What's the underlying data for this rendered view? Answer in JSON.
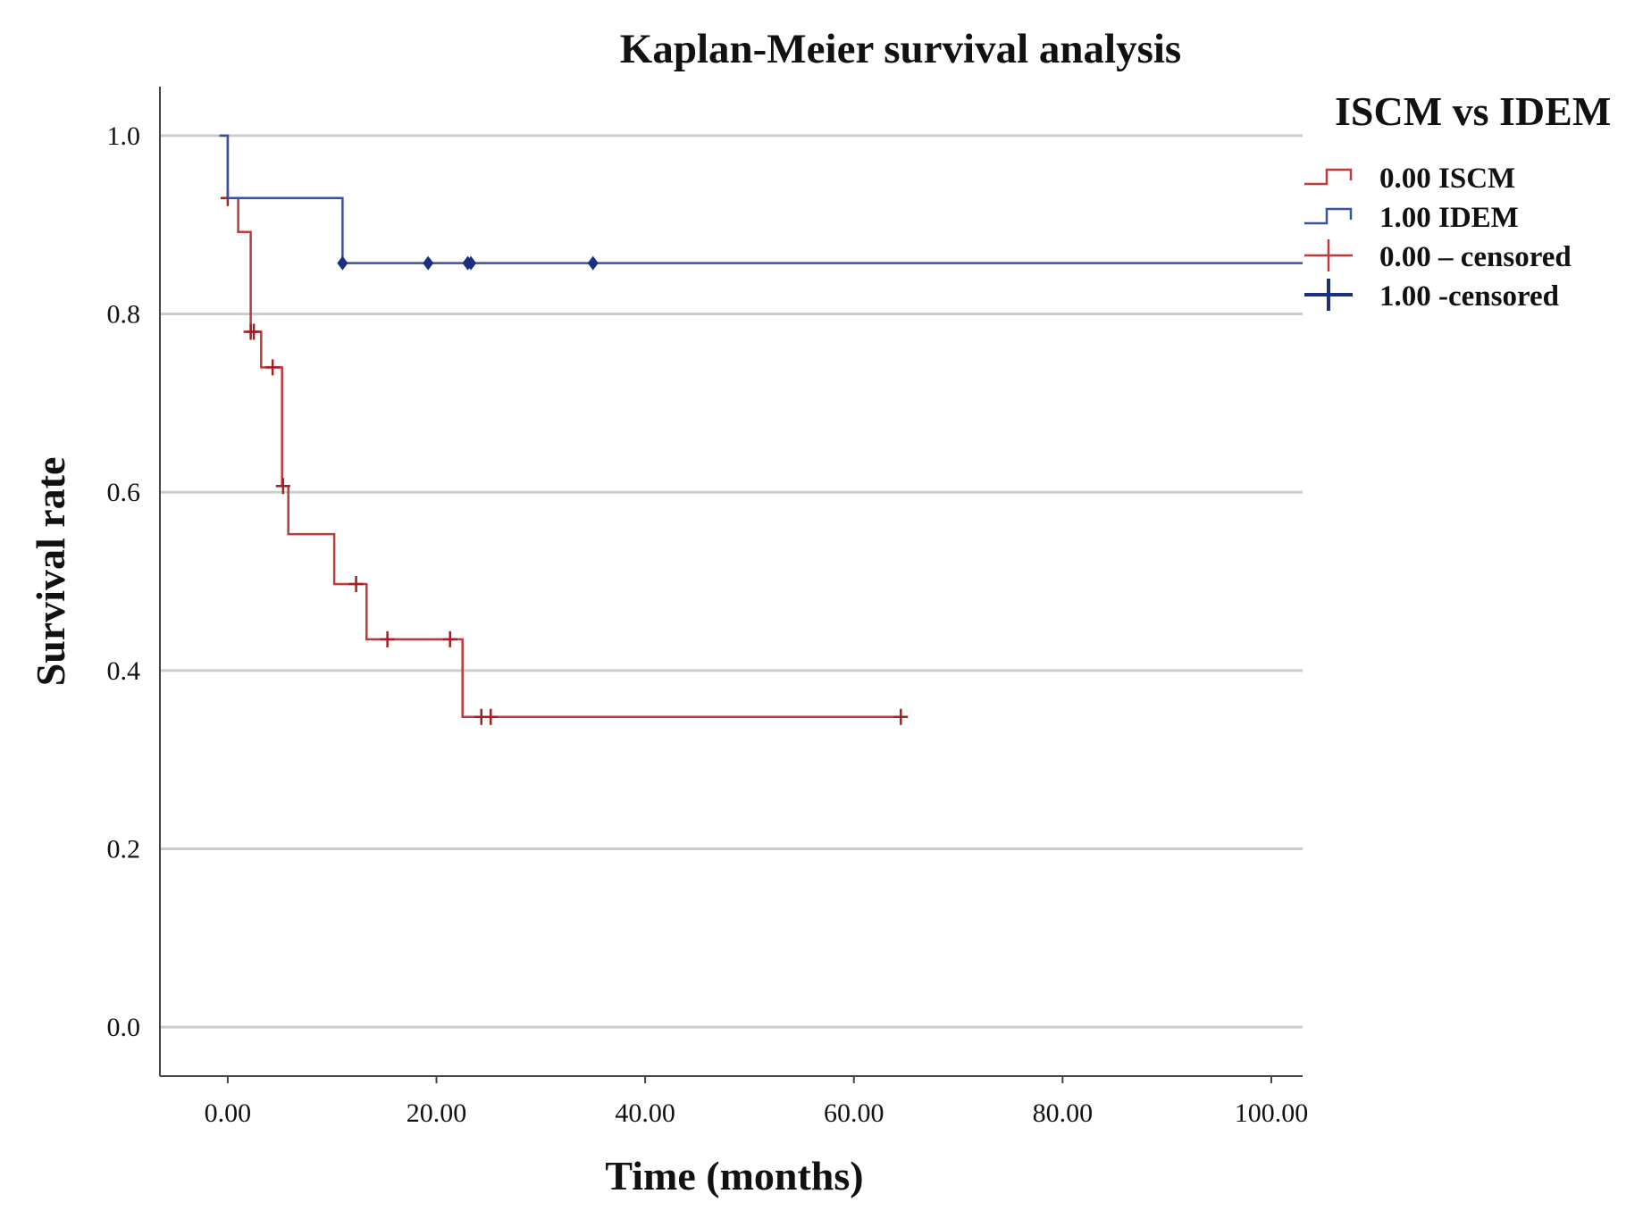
{
  "chart_data": {
    "type": "line",
    "subtype": "kaplan-meier-step",
    "title": "Kaplan-Meier survival analysis",
    "xlabel": "Time (months)",
    "ylabel": "Survival rate",
    "xlim": [
      -6.5,
      103
    ],
    "ylim": [
      -0.055,
      1.055
    ],
    "x_ticks": [
      0,
      20,
      40,
      60,
      80,
      100
    ],
    "x_tick_labels": [
      "0.00",
      "20.00",
      "40.00",
      "60.00",
      "80.00",
      "100.00"
    ],
    "y_ticks": [
      0,
      0.2,
      0.4,
      0.6,
      0.8,
      1.0
    ],
    "y_tick_labels": [
      "0.0",
      "0.2",
      "0.4",
      "0.6",
      "0.8",
      "1.0"
    ],
    "grid": true,
    "legend": {
      "title": "ISCM vs IDEM",
      "position": "top-right",
      "entries": [
        {
          "label": "0.00 ISCM",
          "kind": "step",
          "color": "#c0393b"
        },
        {
          "label": "1.00 IDEM",
          "kind": "step",
          "color": "#3a50a0"
        },
        {
          "label": "0.00 – censored",
          "kind": "censor",
          "color": "#c0393b"
        },
        {
          "label": "1.00 -censored",
          "kind": "censor",
          "color": "#1a2f7f"
        }
      ]
    },
    "series": [
      {
        "name": "0.00 ISCM",
        "color": "#c0393b",
        "censor_color": "#a31f24",
        "steps": [
          [
            -0.5,
            1.0
          ],
          [
            0.0,
            0.93
          ],
          [
            1.0,
            0.892
          ],
          [
            2.2,
            0.78
          ],
          [
            3.2,
            0.74
          ],
          [
            5.2,
            0.607
          ],
          [
            5.8,
            0.553
          ],
          [
            10.2,
            0.497
          ],
          [
            13.3,
            0.435
          ],
          [
            22.5,
            0.348
          ],
          [
            64.5,
            0.348
          ]
        ],
        "censored": [
          [
            0.0,
            0.93
          ],
          [
            2.2,
            0.78
          ],
          [
            2.5,
            0.78
          ],
          [
            4.3,
            0.74
          ],
          [
            5.3,
            0.607
          ],
          [
            12.3,
            0.497
          ],
          [
            15.3,
            0.435
          ],
          [
            21.3,
            0.435
          ],
          [
            24.3,
            0.348
          ],
          [
            25.2,
            0.348
          ],
          [
            64.5,
            0.348
          ]
        ]
      },
      {
        "name": "1.00 IDEM",
        "color": "#3a50a0",
        "censor_color": "#1a2f7f",
        "steps": [
          [
            -0.8,
            1.0
          ],
          [
            0.0,
            0.93
          ],
          [
            11.0,
            0.857
          ],
          [
            103,
            0.857
          ]
        ],
        "censored": [
          [
            11.0,
            0.857
          ],
          [
            19.2,
            0.857
          ],
          [
            23.0,
            0.857
          ],
          [
            23.3,
            0.857
          ],
          [
            35.0,
            0.857
          ]
        ]
      }
    ]
  }
}
